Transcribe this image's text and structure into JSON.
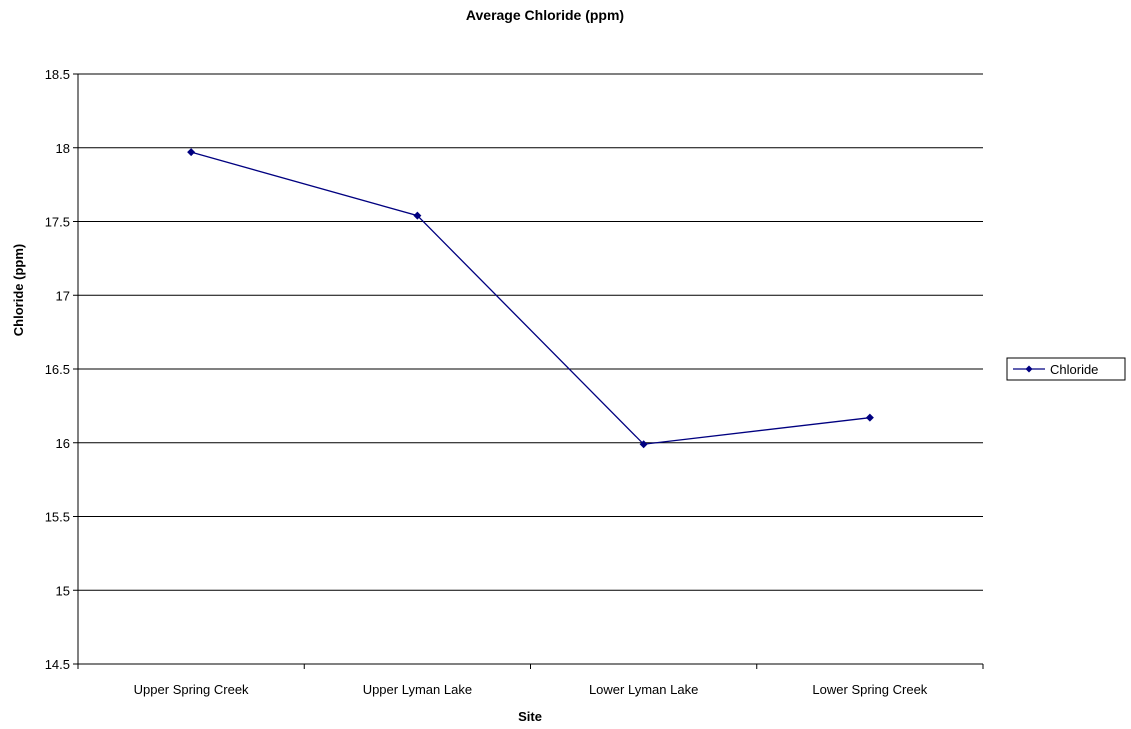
{
  "chart_data": {
    "type": "line",
    "title": "Average Chloride (ppm)",
    "xlabel": "Site",
    "ylabel": "Chloride (ppm)",
    "categories": [
      "Upper Spring Creek",
      "Upper Lyman Lake",
      "Lower Lyman Lake",
      "Lower Spring Creek"
    ],
    "series": [
      {
        "name": "Chloride",
        "values": [
          17.97,
          17.54,
          15.99,
          16.17
        ]
      }
    ],
    "ylim": [
      14.5,
      18.5
    ],
    "yticks": [
      "14.5",
      "15",
      "15.5",
      "16",
      "16.5",
      "17",
      "17.5",
      "18",
      "18.5"
    ],
    "grid": true,
    "legend": "right",
    "colors": {
      "series": "#000080",
      "grid": "#000000",
      "axis": "#000000"
    }
  }
}
